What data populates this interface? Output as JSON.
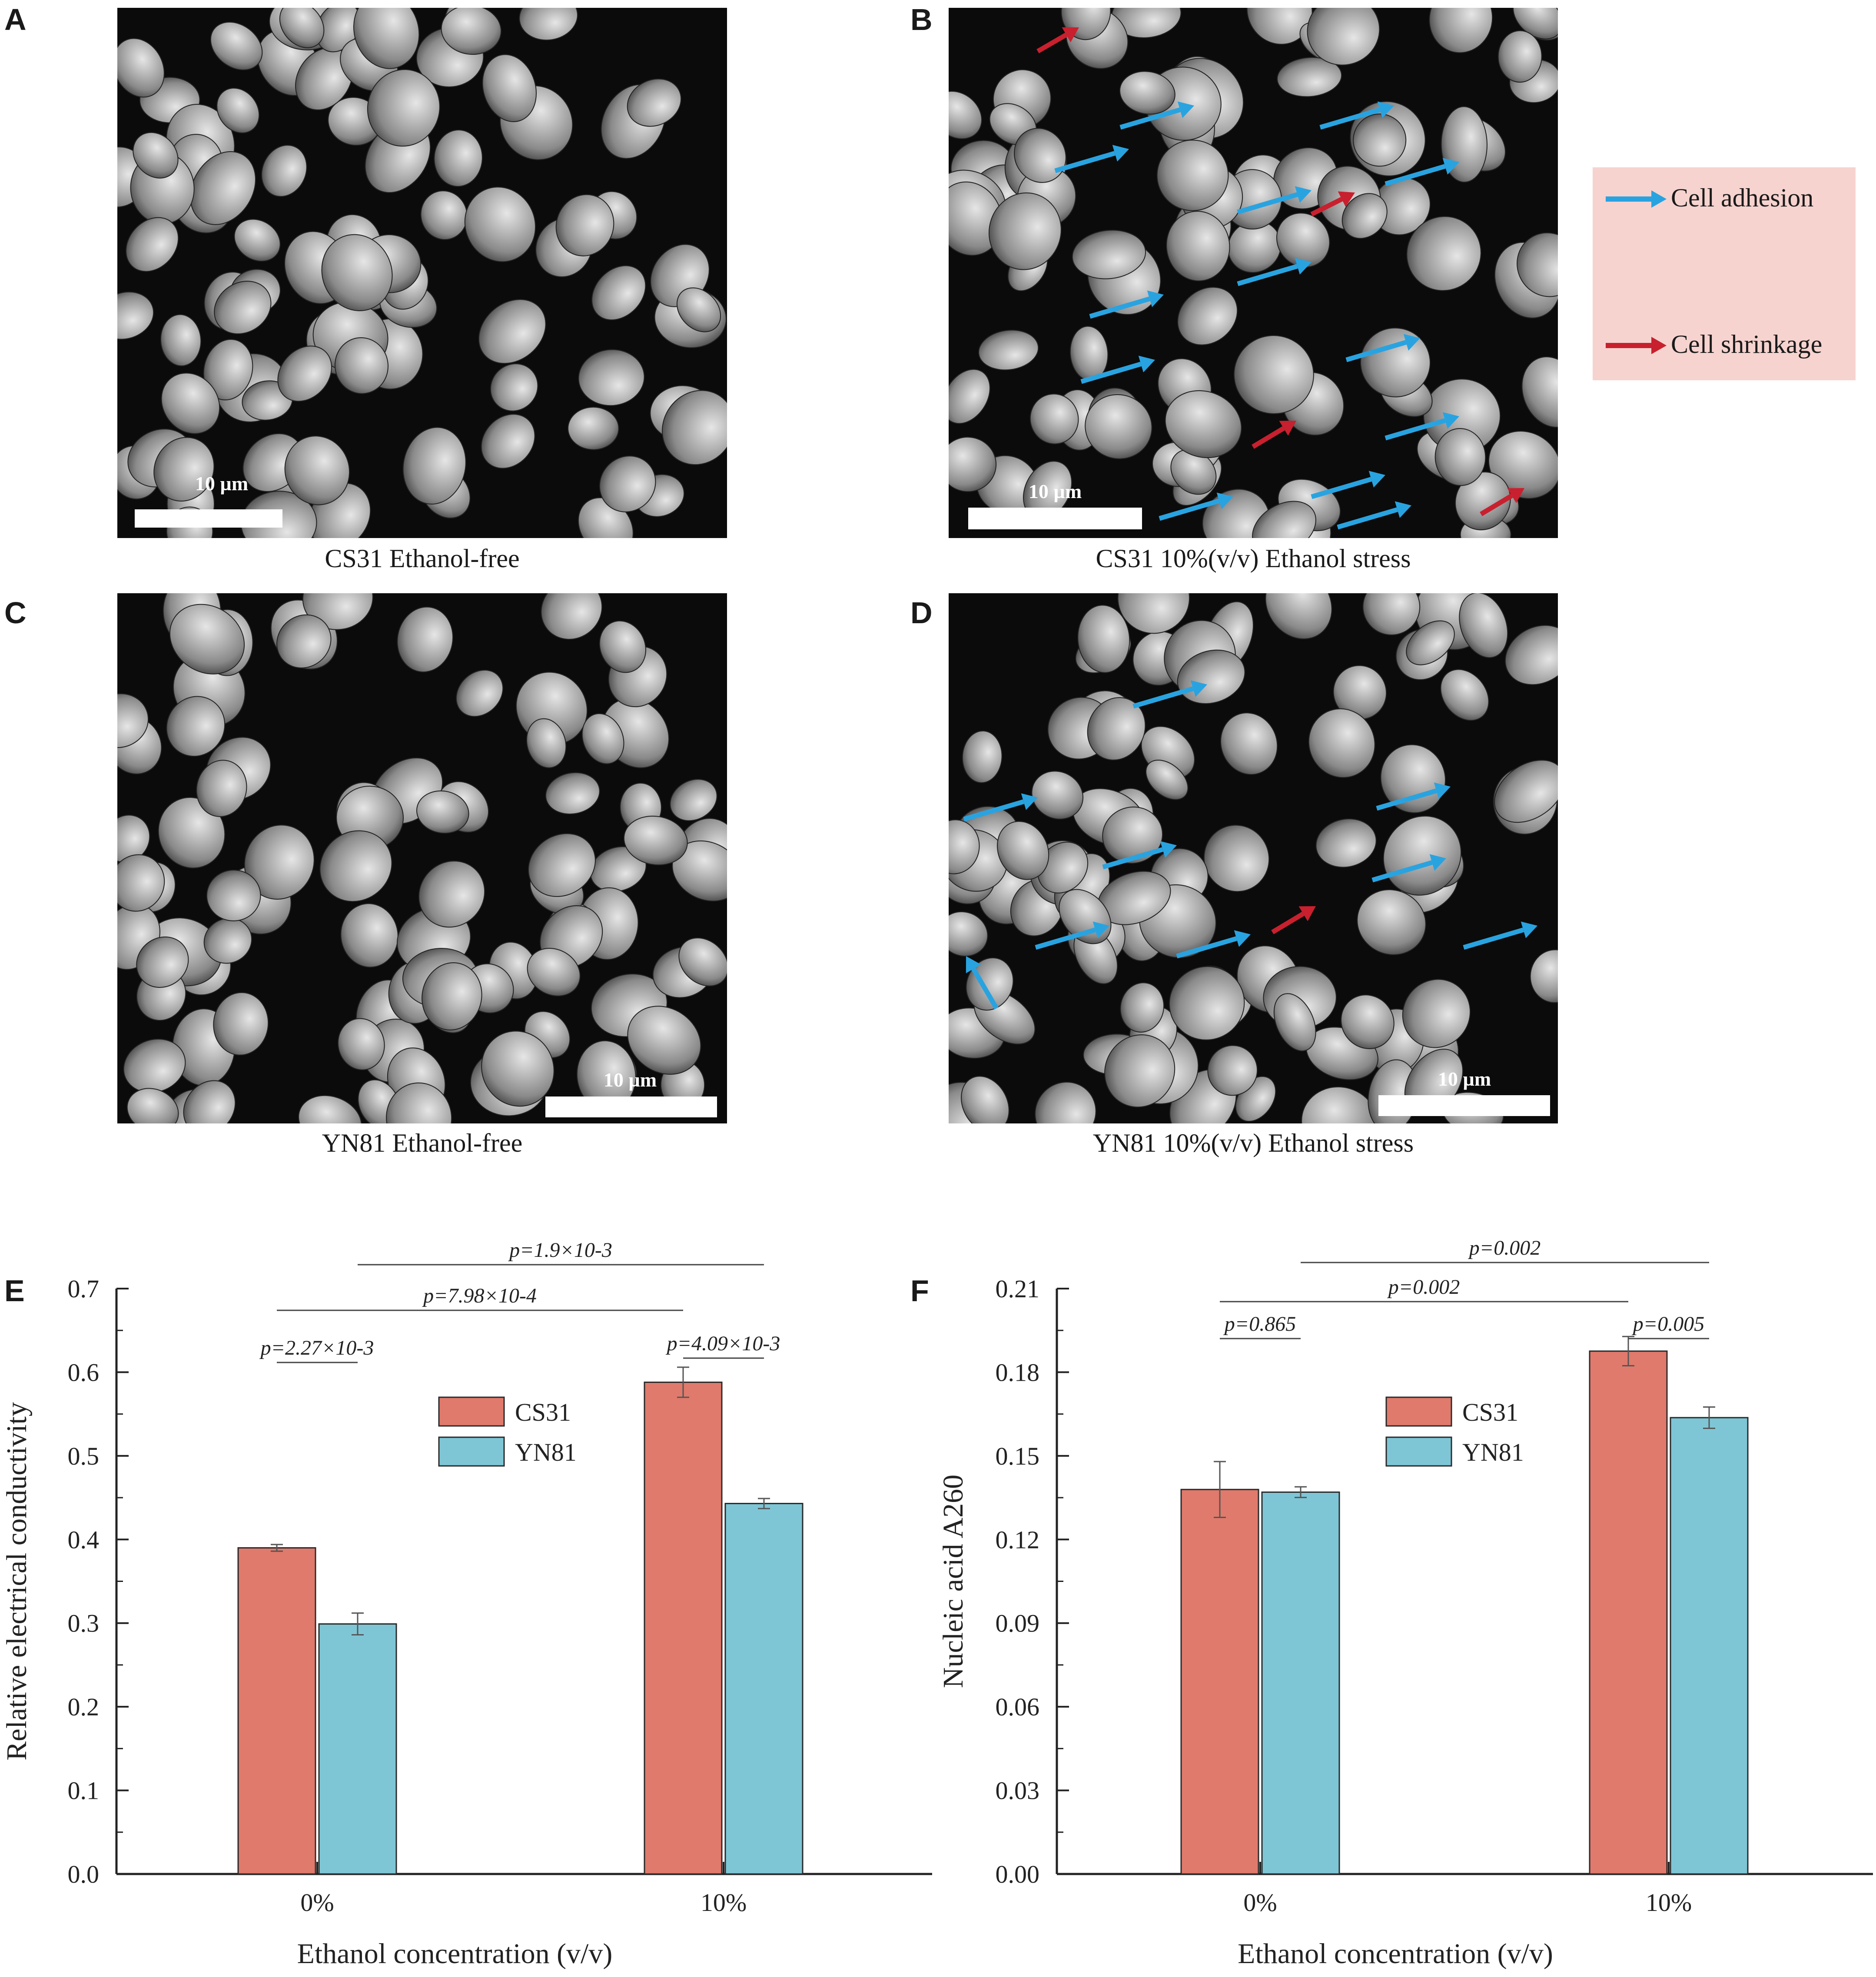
{
  "panels": {
    "A": {
      "letter": "A",
      "caption": "CS31  Ethanol-free",
      "scale": "10 µm"
    },
    "B": {
      "letter": "B",
      "caption": "CS31  10%(v/v) Ethanol stress",
      "scale": "10 µm"
    },
    "C": {
      "letter": "C",
      "caption": "YN81  Ethanol-free",
      "scale": "10 µm"
    },
    "D": {
      "letter": "D",
      "caption": "YN81  10%(v/v) Ethanol stress",
      "scale": "10 µm"
    }
  },
  "arrow_legend": {
    "adhesion": {
      "label": "Cell adhesion",
      "color": "#29a3e0"
    },
    "shrinkage": {
      "label": "Cell shrinkage",
      "color": "#c8202e"
    },
    "background": "#f6d3cf"
  },
  "colors": {
    "cs31": "#e07a6c",
    "yn81": "#7ec6d6"
  },
  "chart_data": [
    {
      "panel": "E",
      "type": "bar",
      "categories": [
        "0%",
        "10%"
      ],
      "series": [
        {
          "name": "CS31",
          "values": [
            0.39,
            0.588
          ],
          "errors": [
            0.004,
            0.018
          ]
        },
        {
          "name": "YN81",
          "values": [
            0.299,
            0.443
          ],
          "errors": [
            0.013,
            0.006
          ]
        }
      ],
      "xlabel": "Ethanol concentration (v/v)",
      "ylabel": "Relative electrical conductivity",
      "ylim": [
        0,
        0.7
      ],
      "yticks": [
        "0.0",
        "0.1",
        "0.2",
        "0.3",
        "0.4",
        "0.5",
        "0.6",
        "0.7"
      ],
      "legend": "upper-middle",
      "annotations": [
        {
          "text": "p=2.27×10-3",
          "from": "0%.CS31",
          "to": "0%.YN81"
        },
        {
          "text": "p=4.09×10-3",
          "from": "10%.CS31",
          "to": "10%.YN81"
        },
        {
          "text": "p=7.98×10-4",
          "from": "0%.CS31",
          "to": "10%.CS31"
        },
        {
          "text": "p=1.9×10-3",
          "from": "0%.YN81",
          "to": "10%.YN81"
        }
      ]
    },
    {
      "panel": "F",
      "type": "bar",
      "categories": [
        "0%",
        "10%"
      ],
      "series": [
        {
          "name": "CS31",
          "values": [
            0.1445,
            0.1965
          ],
          "errors": [
            0.0105,
            0.0055
          ]
        },
        {
          "name": "YN81",
          "values": [
            0.1435,
            0.1715
          ],
          "errors": [
            0.002,
            0.004
          ]
        }
      ],
      "xlabel": "Ethanol concentration (v/v)",
      "ylabel": "Nucleic acid A260",
      "ylim": [
        0,
        0.22
      ],
      "yticks": [
        "0.00",
        "0.03",
        "0.06",
        "0.09",
        "0.12",
        "0.15",
        "0.18",
        "0.21"
      ],
      "legend": "upper-middle",
      "annotations": [
        {
          "text": "p=0.865",
          "from": "0%.CS31",
          "to": "0%.YN81"
        },
        {
          "text": "p=0.005",
          "from": "10%.CS31",
          "to": "10%.YN81"
        },
        {
          "text": "p=0.002",
          "from": "0%.CS31",
          "to": "10%.CS31"
        },
        {
          "text": "p=0.002",
          "from": "0%.YN81",
          "to": "10%.YN81"
        }
      ]
    }
  ]
}
